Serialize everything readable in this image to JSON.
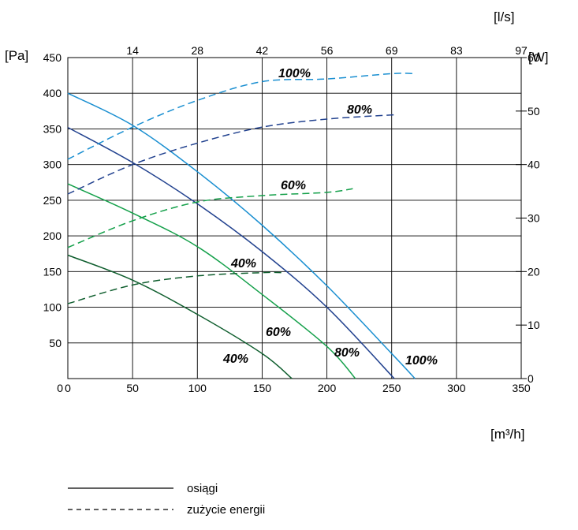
{
  "chart_data": {
    "type": "line",
    "x_axis": {
      "label": "[m³/h]",
      "range": [
        0,
        350
      ],
      "ticks": [
        "0",
        "50",
        "100",
        "150",
        "200",
        "250",
        "300",
        "350"
      ]
    },
    "x_top_axis": {
      "label": "[l/s]",
      "ticks": [
        "14",
        "28",
        "42",
        "56",
        "69",
        "83",
        "97"
      ]
    },
    "y_axis": {
      "label": "[Pa]",
      "range": [
        0,
        450
      ],
      "ticks": [
        "0",
        "50",
        "100",
        "150",
        "200",
        "250",
        "300",
        "350",
        "400",
        "450"
      ]
    },
    "y_right_axis": {
      "label": "[W]",
      "range": [
        0,
        60
      ],
      "ticks": [
        "0",
        "10",
        "20",
        "30",
        "40",
        "50",
        "60"
      ]
    },
    "grid": true,
    "colors": {
      "100%": "#1a8fd1",
      "80%": "#22428f",
      "60%": "#14a04a",
      "40%": "#0f5e2e"
    },
    "series": [
      {
        "name": "100%",
        "kind": "performance",
        "axis": "left",
        "label_text": "100%",
        "x": [
          0,
          50,
          100,
          150,
          200,
          250,
          268
        ],
        "y": [
          400,
          355,
          290,
          215,
          130,
          35,
          0
        ]
      },
      {
        "name": "80%",
        "kind": "performance",
        "axis": "left",
        "label_text": "80%",
        "x": [
          0,
          50,
          100,
          150,
          200,
          252
        ],
        "y": [
          352,
          303,
          245,
          178,
          100,
          0
        ]
      },
      {
        "name": "60%",
        "kind": "performance",
        "axis": "left",
        "label_text": "60%",
        "x": [
          0,
          50,
          100,
          150,
          200,
          222
        ],
        "y": [
          273,
          232,
          185,
          118,
          45,
          0
        ]
      },
      {
        "name": "40%",
        "kind": "performance",
        "axis": "left",
        "label_text": "40%",
        "x": [
          0,
          50,
          100,
          150,
          173
        ],
        "y": [
          173,
          138,
          90,
          35,
          0
        ]
      },
      {
        "name": "100%",
        "kind": "power",
        "axis": "right",
        "label_text": "100%",
        "x": [
          0,
          50,
          100,
          150,
          200,
          250,
          268
        ],
        "y": [
          41,
          47,
          52,
          55.5,
          56,
          57,
          57
        ]
      },
      {
        "name": "80%",
        "kind": "power",
        "axis": "right",
        "label_text": "80%",
        "x": [
          0,
          50,
          100,
          150,
          200,
          252
        ],
        "y": [
          34.5,
          40,
          44,
          47,
          48.5,
          49.3
        ]
      },
      {
        "name": "60%",
        "kind": "power",
        "axis": "right",
        "label_text": "60%",
        "x": [
          0,
          50,
          100,
          150,
          200,
          220
        ],
        "y": [
          24.5,
          29.5,
          33,
          34.2,
          34.8,
          35.5
        ]
      },
      {
        "name": "40%",
        "kind": "power",
        "axis": "right",
        "label_text": "40%",
        "x": [
          0,
          50,
          100,
          150,
          166
        ],
        "y": [
          14,
          17.5,
          19.2,
          19.8,
          19.8
        ]
      }
    ]
  },
  "legend": {
    "solid_label": "osiągi",
    "dashed_label": "zużycie energii"
  }
}
